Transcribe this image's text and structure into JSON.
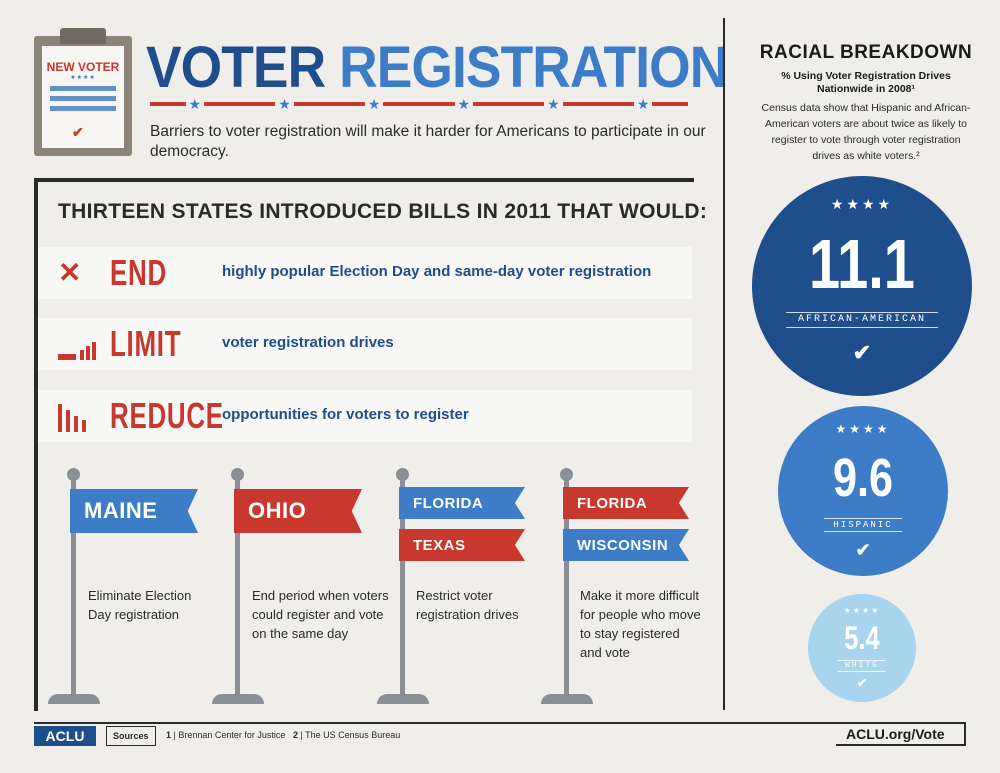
{
  "clipboard": {
    "title": "NEW VOTER",
    "stars": "★★★★",
    "check": "✔"
  },
  "header": {
    "title_part_1": "VOTER",
    "title_part_2": "REGISTRATION",
    "subtitle": "Barriers to voter registration will make it harder for Americans to participate in our democracy."
  },
  "main": {
    "headline": "THIRTEEN STATES INTRODUCED BILLS IN 2011 THAT WOULD:",
    "rows": [
      {
        "icon": "x-icon",
        "word": "END",
        "description": "highly popular Election Day and same-day voter registration"
      },
      {
        "icon": "rising-bars-icon",
        "word": "LIMIT",
        "description": "voter registration drives"
      },
      {
        "icon": "falling-bars-icon",
        "word": "REDUCE",
        "description": "opportunities for voters to register"
      }
    ],
    "flags": [
      {
        "states": [
          "MAINE"
        ],
        "description": "Eliminate Election Day registration"
      },
      {
        "states": [
          "OHIO"
        ],
        "description": "End period when voters could register and vote on the same day"
      },
      {
        "states": [
          "FLORIDA",
          "TEXAS"
        ],
        "description": "Restrict voter registration drives"
      },
      {
        "states": [
          "FLORIDA",
          "WISCONSIN"
        ],
        "description": "Make it more difficult for people who move to stay registered and vote"
      }
    ]
  },
  "sidebar": {
    "title": "RACIAL BREAKDOWN",
    "subtitle": "% Using Voter Registration Drives Nationwide in 2008¹",
    "description": "Census data show that Hispanic and African-American voters are about twice as likely to register to vote through voter registration drives as white voters.²",
    "circles": [
      {
        "value": "11.1",
        "label": "AFRICAN-AMERICAN",
        "stars": "★★★★",
        "check": "✔",
        "color": "#1f4e8c"
      },
      {
        "value": "9.6",
        "label": "HISPANIC",
        "stars": "★★★★",
        "check": "✔",
        "color": "#3d7cc6"
      },
      {
        "value": "5.4",
        "label": "WHITE",
        "stars": "★★★★",
        "check": "✔",
        "color": "#a9d4ee"
      }
    ]
  },
  "footer": {
    "logo": "ACLU",
    "sources_label": "Sources",
    "source_1_num": "1",
    "source_1": "| Brennan Center for Justice",
    "source_2_num": "2",
    "source_2": "| The US Census Bureau",
    "url": "ACLU.org/Vote"
  },
  "colors": {
    "red": "#c8382e",
    "dark_blue": "#1f4e8c",
    "mid_blue": "#3d7cc6",
    "light_blue": "#a9d4ee"
  }
}
